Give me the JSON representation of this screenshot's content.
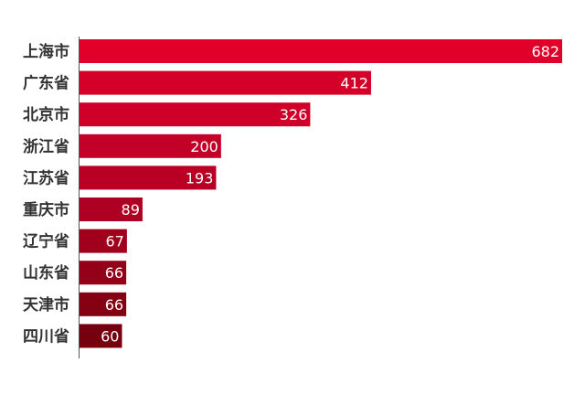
{
  "chart_data": {
    "type": "bar",
    "orientation": "horizontal",
    "title": "",
    "xlabel": "",
    "ylabel": "",
    "categories": [
      "上海市",
      "广东省",
      "北京市",
      "浙江省",
      "江苏省",
      "重庆市",
      "辽宁省",
      "山东省",
      "天津市",
      "四川省"
    ],
    "values": [
      682,
      412,
      326,
      200,
      193,
      89,
      67,
      66,
      66,
      60
    ],
    "xlim": [
      0,
      682
    ],
    "grid": false,
    "legend": "none",
    "data_labels": true,
    "colors": [
      "#e0002a",
      "#d5002a",
      "#ce0029",
      "#c30027",
      "#b90024",
      "#ad0022",
      "#a1001d",
      "#940018",
      "#850013",
      "#76000e"
    ]
  }
}
